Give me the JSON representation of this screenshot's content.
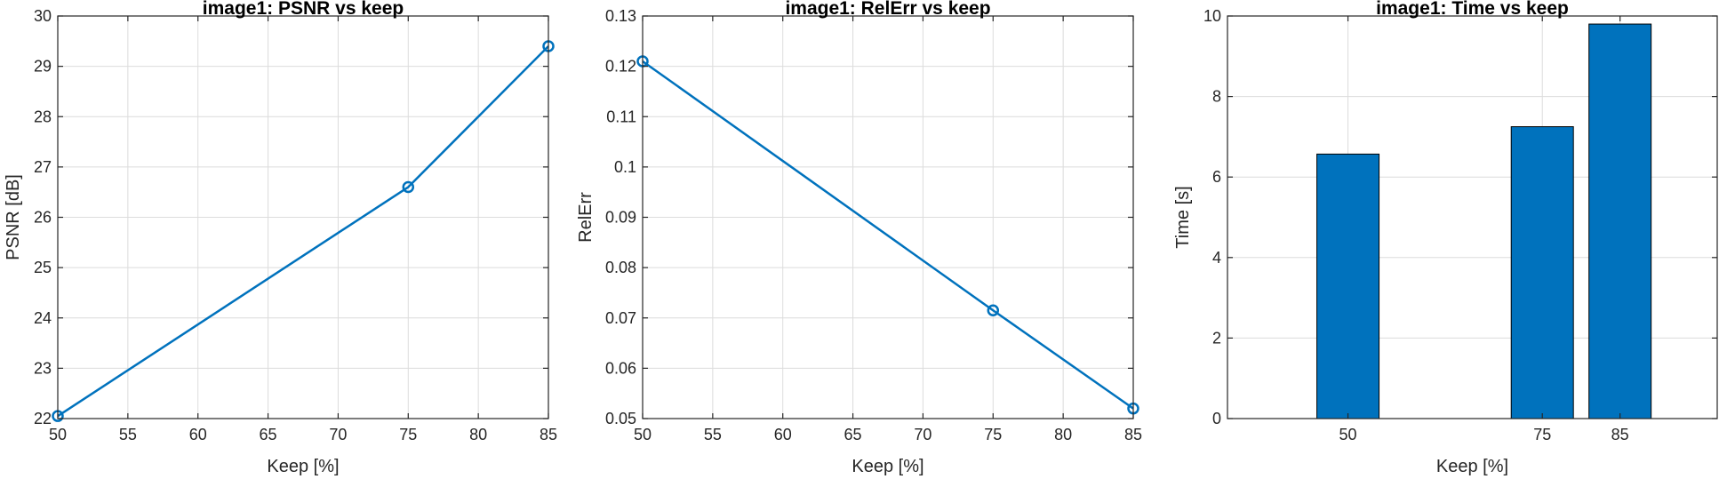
{
  "chart_data": [
    {
      "type": "line",
      "title": "image1: PSNR vs keep",
      "xlabel": "Keep [%]",
      "ylabel": "PSNR [dB]",
      "x": [
        50,
        75,
        85
      ],
      "series": [
        {
          "values": [
            22.05,
            26.6,
            29.4
          ]
        }
      ],
      "xlim": [
        50,
        85
      ],
      "ylim": [
        22,
        30
      ],
      "xticks": [
        50,
        55,
        60,
        65,
        70,
        75,
        80,
        85
      ],
      "yticks": [
        22,
        23,
        24,
        25,
        26,
        27,
        28,
        29,
        30
      ],
      "xtick_labels": [
        "50",
        "55",
        "60",
        "65",
        "70",
        "75",
        "80",
        "85"
      ],
      "ytick_labels": [
        "22",
        "23",
        "24",
        "25",
        "26",
        "27",
        "28",
        "29",
        "30"
      ],
      "marker": "circle",
      "grid": true,
      "color": "#0072BD"
    },
    {
      "type": "line",
      "title": "image1: RelErr vs keep",
      "xlabel": "Keep [%]",
      "ylabel": "RelErr",
      "x": [
        50,
        75,
        85
      ],
      "series": [
        {
          "values": [
            0.121,
            0.0715,
            0.052
          ]
        }
      ],
      "xlim": [
        50,
        85
      ],
      "ylim": [
        0.05,
        0.13
      ],
      "xticks": [
        50,
        55,
        60,
        65,
        70,
        75,
        80,
        85
      ],
      "yticks": [
        0.05,
        0.06,
        0.07,
        0.08,
        0.09,
        0.1,
        0.11,
        0.12,
        0.13
      ],
      "xtick_labels": [
        "50",
        "55",
        "60",
        "65",
        "70",
        "75",
        "80",
        "85"
      ],
      "ytick_labels": [
        "0.05",
        "0.06",
        "0.07",
        "0.08",
        "0.09",
        "0.1",
        "0.11",
        "0.12",
        "0.13"
      ],
      "marker": "circle",
      "grid": true,
      "color": "#0072BD"
    },
    {
      "type": "bar",
      "title": "image1: Time vs keep",
      "xlabel": "Keep [%]",
      "ylabel": "Time [s]",
      "x": [
        50,
        75,
        85
      ],
      "series": [
        {
          "values": [
            6.57,
            7.25,
            9.8
          ]
        }
      ],
      "xlim": [
        34.5,
        97.5
      ],
      "ylim": [
        0,
        10
      ],
      "bar_width": 8,
      "xticks": [
        50,
        75,
        85
      ],
      "yticks": [
        0,
        2,
        4,
        6,
        8,
        10
      ],
      "xtick_labels": [
        "50",
        "75",
        "85"
      ],
      "ytick_labels": [
        "0",
        "2",
        "4",
        "6",
        "8",
        "10"
      ],
      "grid": true,
      "color": "#0072BD"
    }
  ]
}
